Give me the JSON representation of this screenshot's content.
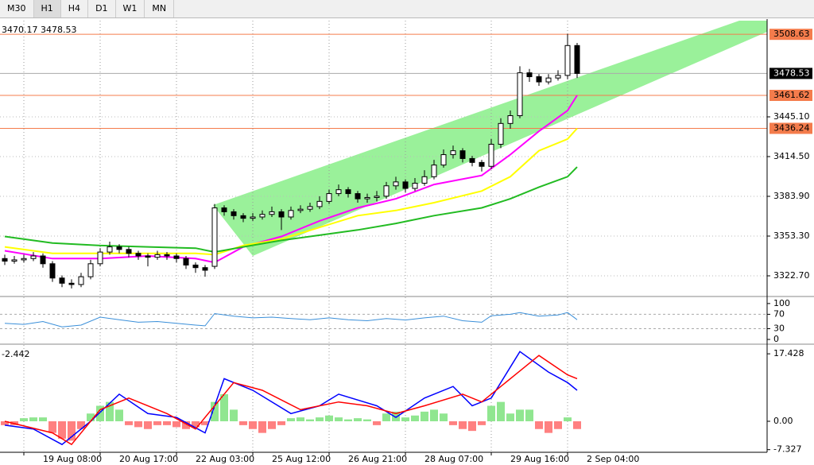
{
  "toolbar": {
    "buttons": [
      "M30",
      "H1",
      "H4",
      "D1",
      "W1",
      "MN"
    ],
    "selected": 1
  },
  "chart_data": [
    {
      "type": "candlestick",
      "header": "3470.17 3478.53",
      "ylim": [
        3307.4,
        3516.7
      ],
      "yticks": [
        {
          "value": 3445.1,
          "label": "3445.10"
        },
        {
          "value": 3414.5,
          "label": "3414.50"
        },
        {
          "value": 3383.9,
          "label": "3383.90"
        },
        {
          "value": 3353.3,
          "label": "3353.30"
        },
        {
          "value": 3322.7,
          "label": "3322.70"
        }
      ],
      "xlim": [
        -0.5,
        80
      ],
      "xticks": [
        {
          "value": 2,
          "label": "19 Aug 08:00"
        },
        {
          "value": 10,
          "label": "20 Aug 17:00"
        },
        {
          "value": 18,
          "label": "22 Aug 03:00"
        },
        {
          "value": 26,
          "label": "25 Aug 12:00"
        },
        {
          "value": 34,
          "label": "26 Aug 21:00"
        },
        {
          "value": 42,
          "label": "28 Aug 07:00"
        },
        {
          "value": 51,
          "label": "29 Aug 16:00"
        },
        {
          "value": 59,
          "label": "2 Sep 04:00"
        }
      ],
      "open": [
        3336,
        3334,
        3335,
        3336,
        3338,
        3332,
        3321,
        3317,
        3316,
        3322,
        3332,
        3341,
        3345,
        3343,
        3340,
        3338,
        3337,
        3339,
        3338,
        3336,
        3331,
        3329,
        3330,
        3375,
        3372,
        3369,
        3367,
        3368,
        3370,
        3372,
        3368,
        3373,
        3374,
        3376,
        3380,
        3386,
        3389,
        3386,
        3382,
        3383,
        3384,
        3392,
        3395,
        3390,
        3394,
        3399,
        3408,
        3416,
        3419,
        3413,
        3410,
        3407,
        3424,
        3440,
        3446,
        3479,
        3476,
        3472,
        3475,
        3477,
        3500
      ],
      "high": [
        3339,
        3338,
        3339,
        3341,
        3340,
        3334,
        3323,
        3320,
        3325,
        3335,
        3344,
        3349,
        3347,
        3345,
        3342,
        3340,
        3342,
        3341,
        3340,
        3338,
        3333,
        3331,
        3378,
        3377,
        3374,
        3371,
        3371,
        3373,
        3376,
        3374,
        3376,
        3377,
        3379,
        3384,
        3389,
        3393,
        3391,
        3388,
        3386,
        3388,
        3395,
        3399,
        3397,
        3398,
        3404,
        3412,
        3420,
        3423,
        3421,
        3415,
        3412,
        3428,
        3444,
        3450,
        3484,
        3482,
        3478,
        3478,
        3481,
        3509,
        3502
      ],
      "low": [
        3331,
        3332,
        3333,
        3334,
        3329,
        3318,
        3314,
        3313,
        3314,
        3320,
        3330,
        3339,
        3340,
        3337,
        3335,
        3330,
        3335,
        3335,
        3333,
        3328,
        3325,
        3322,
        3328,
        3369,
        3366,
        3364,
        3365,
        3366,
        3368,
        3358,
        3366,
        3371,
        3372,
        3374,
        3378,
        3384,
        3383,
        3379,
        3379,
        3380,
        3382,
        3389,
        3387,
        3388,
        3392,
        3397,
        3406,
        3413,
        3410,
        3407,
        3403,
        3405,
        3421,
        3436,
        3444,
        3472,
        3469,
        3470,
        3473,
        3474,
        3475
      ],
      "close": [
        3334,
        3335,
        3336,
        3338,
        3332,
        3321,
        3317,
        3316,
        3322,
        3332,
        3341,
        3345,
        3343,
        3340,
        3338,
        3337,
        3339,
        3338,
        3336,
        3331,
        3329,
        3327,
        3375,
        3372,
        3369,
        3367,
        3368,
        3370,
        3372,
        3368,
        3373,
        3374,
        3376,
        3380,
        3386,
        3389,
        3386,
        3382,
        3383,
        3384,
        3392,
        3395,
        3390,
        3394,
        3399,
        3408,
        3416,
        3419,
        3413,
        3410,
        3407,
        3424,
        3440,
        3446,
        3479,
        3476,
        3472,
        3475,
        3477,
        3500,
        3478.53
      ],
      "series": [
        {
          "color": "#ff00ff",
          "x": [
            0,
            5,
            10,
            15,
            20,
            22,
            25,
            29,
            33,
            37,
            41,
            45,
            50,
            53,
            56,
            59,
            60
          ],
          "values": [
            3342,
            3336,
            3336,
            3338,
            3336,
            3333,
            3345,
            3353,
            3365,
            3375,
            3382,
            3393,
            3400,
            3416,
            3434,
            3450,
            3461.6
          ]
        },
        {
          "color": "#ffff00",
          "x": [
            0,
            5,
            10,
            15,
            20,
            22,
            25,
            29,
            33,
            37,
            41,
            45,
            50,
            53,
            56,
            59,
            60
          ],
          "values": [
            3345,
            3340,
            3340,
            3340,
            3340,
            3339,
            3346,
            3351,
            3360,
            3369,
            3373,
            3379,
            3388,
            3399,
            3419,
            3428,
            3436.2
          ]
        },
        {
          "color": "#22bb22",
          "x": [
            0,
            5,
            10,
            15,
            20,
            22,
            25,
            29,
            33,
            37,
            41,
            45,
            50,
            53,
            56,
            59,
            60
          ],
          "values": [
            3353,
            3348,
            3346,
            3345,
            3344,
            3341,
            3345,
            3350,
            3354,
            3358,
            3363,
            3369,
            3375,
            3382,
            3391,
            3399,
            3406.5
          ]
        }
      ],
      "levels": [
        {
          "value": 3508.63,
          "label": "3508.63"
        },
        {
          "value": 3461.62,
          "label": "3461.62"
        },
        {
          "value": 3436.24,
          "label": "3436.24"
        }
      ],
      "level_color": "#f47c4c",
      "last_price": {
        "value": 3478.53,
        "label": "3478.53"
      }
    },
    {
      "type": "line",
      "ylim": [
        -11,
        113
      ],
      "yticks": [
        100,
        70,
        30,
        0
      ],
      "levels": [
        70,
        30
      ],
      "color": "#3a8fd9",
      "x": [
        0,
        2,
        4,
        6,
        8,
        10,
        12,
        14,
        16,
        18,
        20,
        21,
        22,
        24,
        26,
        28,
        30,
        32,
        34,
        36,
        38,
        40,
        42,
        44,
        46,
        48,
        50,
        51,
        53,
        54,
        56,
        58,
        59,
        60
      ],
      "values": [
        45,
        42,
        50,
        35,
        40,
        62,
        55,
        48,
        50,
        45,
        40,
        38,
        72,
        65,
        60,
        62,
        58,
        55,
        60,
        55,
        52,
        58,
        54,
        60,
        65,
        52,
        48,
        66,
        70,
        75,
        65,
        68,
        75,
        55
      ]
    },
    {
      "type": "macd",
      "header": "-2.442",
      "ylim": [
        -7.8,
        19.3
      ],
      "yticks": [
        17.428,
        {
          "value": 0,
          "label": "0.00"
        },
        -7.327
      ],
      "histogram": [
        -1,
        -1,
        0.8,
        1,
        1,
        -3,
        -4.5,
        -5,
        -2,
        2,
        4,
        5,
        3,
        -1,
        -1.5,
        -2,
        -1,
        -1,
        -1.5,
        -2,
        -1.5,
        -1,
        5,
        7,
        3,
        -1,
        -2,
        -3,
        -2,
        -1,
        0.8,
        1,
        0.5,
        1,
        1.5,
        1,
        0.5,
        0.8,
        0.5,
        -1,
        2,
        2.5,
        1,
        1.5,
        2.5,
        3,
        2,
        -1,
        -2,
        -2.5,
        -1,
        4,
        5,
        2,
        3,
        3,
        -2,
        -3,
        -2,
        1,
        -2
      ],
      "up_color": "#22cc22",
      "down_color": "#ff0000",
      "series": [
        {
          "color": "#0000ff",
          "x": [
            0,
            3,
            6,
            9,
            12,
            15,
            18,
            21,
            23,
            26,
            30,
            33,
            35,
            39,
            41,
            44,
            47,
            49,
            51,
            53,
            54,
            57,
            59,
            60
          ],
          "values": [
            -1,
            -2,
            -6,
            0,
            7,
            2,
            1,
            -3,
            11,
            8,
            2,
            4,
            7,
            4,
            1,
            6,
            9,
            4,
            6,
            14,
            18,
            12.7,
            10,
            8
          ]
        },
        {
          "color": "#ff0000",
          "x": [
            0,
            5,
            7,
            10,
            13,
            17,
            20,
            24,
            27,
            31,
            35,
            38,
            41,
            44,
            48,
            50,
            54,
            56,
            59,
            60
          ],
          "values": [
            0,
            -3,
            -6,
            3,
            6,
            2,
            -2,
            10,
            8,
            3,
            5,
            4,
            2,
            4,
            7,
            5,
            13,
            17,
            12,
            11
          ]
        }
      ]
    }
  ]
}
